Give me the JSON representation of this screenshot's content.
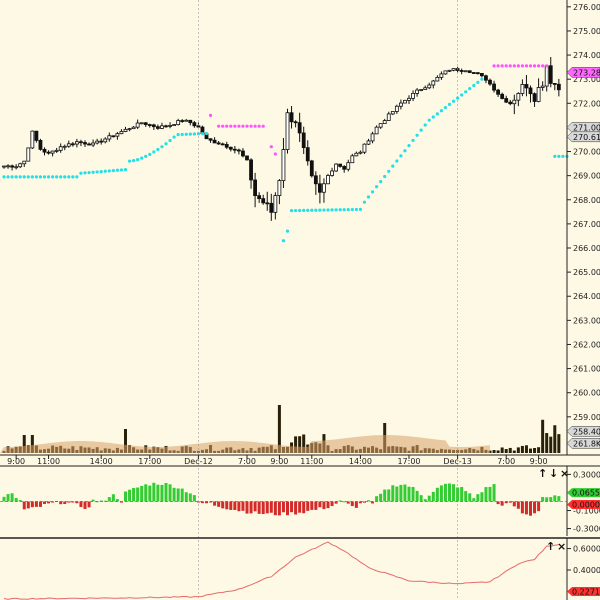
{
  "colors": {
    "background": "#fdf9e4",
    "candle": "#111111",
    "psar_support": "#22e0e8",
    "psar_resistance": "#ff55ff",
    "volume_bar": "#2a2008",
    "volume_avg": "#d9a26a",
    "osc_positive": "#33cc33",
    "osc_negative": "#d42a2a",
    "line_indicator": "#e86a6a",
    "tag_green": "#33cc33",
    "tag_red": "#ff3030",
    "tag_magenta": "#ff66ff",
    "tag_gray": "#d8d8d8",
    "separator": "#222222"
  },
  "price_axis": {
    "min": 257.5,
    "max": 276.2,
    "ticks": [
      "276.00",
      "275.00",
      "274.00",
      "273.00",
      "272.00",
      "271.00",
      "270.00",
      "269.00",
      "268.00",
      "267.00",
      "266.00",
      "265.00",
      "264.00",
      "263.00",
      "262.00",
      "261.00",
      "260.00",
      "259.00"
    ],
    "tags": [
      {
        "value": 273.28,
        "label": "273.28",
        "color_key": "tag_magenta"
      },
      {
        "value": 271.0,
        "label": "271.00",
        "color_key": "tag_gray"
      },
      {
        "value": 270.61,
        "label": "270.61",
        "color_key": "tag_gray"
      },
      {
        "value": 258.4,
        "label": "258.40",
        "color_key": "tag_gray"
      },
      {
        "value": 257.9,
        "label": "261.8K",
        "color_key": "tag_gray"
      }
    ]
  },
  "time_axis": {
    "labels": [
      {
        "i": 3,
        "label": "9:00"
      },
      {
        "i": 11,
        "label": "11:00"
      },
      {
        "i": 24,
        "label": "14:00"
      },
      {
        "i": 36,
        "label": "17:00"
      },
      {
        "i": 48,
        "label": "Dec-12"
      },
      {
        "i": 60,
        "label": "7:00"
      },
      {
        "i": 68,
        "label": "9:00"
      },
      {
        "i": 76,
        "label": "11:00"
      },
      {
        "i": 88,
        "label": "14:00"
      },
      {
        "i": 100,
        "label": "17:00"
      },
      {
        "i": 112,
        "label": "Dec-13"
      },
      {
        "i": 124,
        "label": "7:00"
      },
      {
        "i": 132,
        "label": "9:00"
      }
    ],
    "session_separators": [
      48,
      112
    ]
  },
  "oscillator": {
    "ticks": [
      "0.3000",
      "0.1000",
      "-0.1000",
      "-0.3000"
    ],
    "tag": {
      "label": "0.06558",
      "color_key": "tag_green"
    },
    "tag_zero": {
      "label": "0.00000",
      "color_key": "tag_red"
    },
    "controls": [
      "↑",
      "↓",
      "×"
    ]
  },
  "line_indicator": {
    "ticks": [
      "0.6000",
      "0.4000",
      "0.2000"
    ],
    "tag": {
      "label": "0.22712",
      "color_key": "tag_red"
    },
    "controls": [
      "↑",
      "×"
    ]
  }
}
